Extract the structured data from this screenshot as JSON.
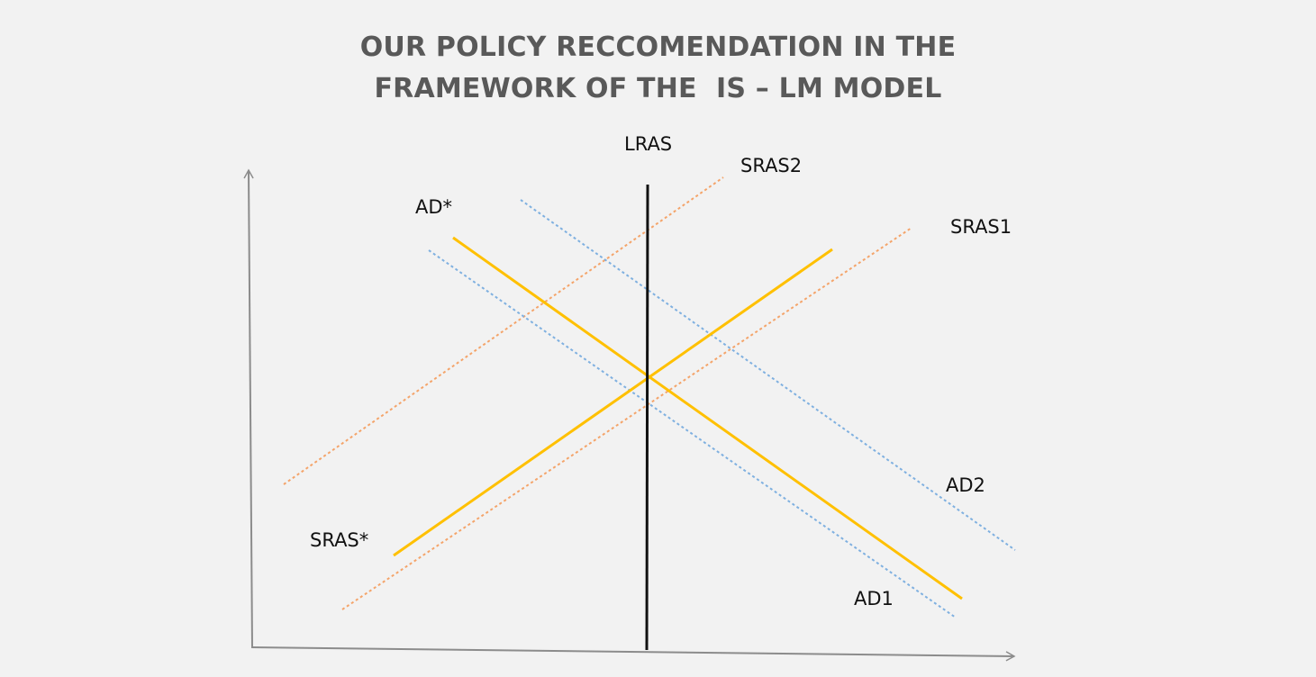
{
  "title": {
    "line1": "OUR POLICY RECCOMENDATION IN THE",
    "line2": "FRAMEWORK OF THE  IS – LM MODEL"
  },
  "labels": {
    "lras": "LRAS",
    "sras2": "SRAS2",
    "sras1": "SRAS1",
    "sras_star": "SRAS*",
    "ad_star": "AD*",
    "ad2": "AD2",
    "ad1": "AD1"
  },
  "colors": {
    "background": "#f2f2f2",
    "title": "#595959",
    "axes": "#8c8c8c",
    "lras": "#111111",
    "equilibrium_curves": "#ffc000",
    "sras_shifted": "#f4a46a",
    "ad_shifted": "#7fb0e0"
  }
}
